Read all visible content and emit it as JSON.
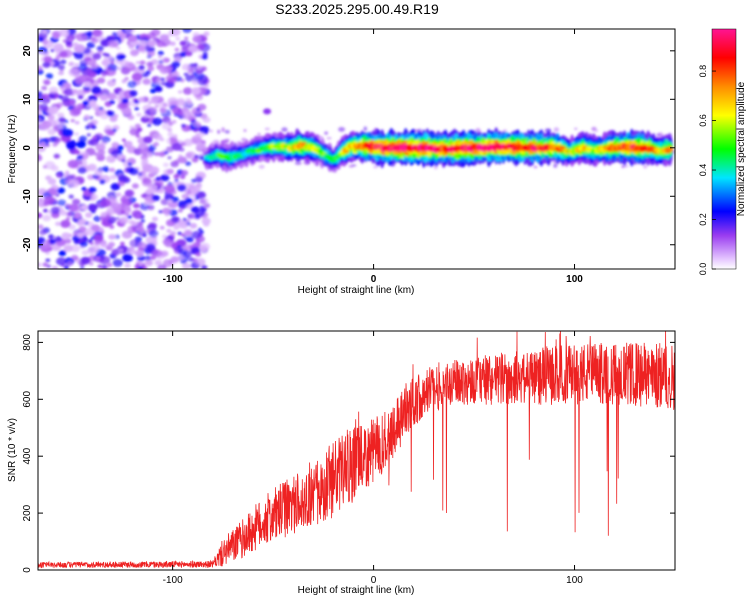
{
  "title": "S233.2025.295.00.49.R19",
  "chart_data": [
    {
      "type": "heatmap",
      "xlabel": "Height of straight line (km)",
      "ylabel": "Frequency (Hz)",
      "xlim": [
        -167,
        150
      ],
      "ylim": [
        -25,
        24.5
      ],
      "xticks": [
        -100,
        0,
        100
      ],
      "yticks": [
        -20,
        -10,
        0,
        10,
        20
      ],
      "colorbar": {
        "label": "Normalized spectral amplitude",
        "range": [
          0,
          0.97
        ],
        "ticks": [
          "0.0",
          "0.2",
          "0.4",
          "0.6",
          "0.8"
        ],
        "tick_values": [
          0,
          0.2,
          0.4,
          0.6,
          0.8
        ],
        "colors": [
          "#ffffff",
          "#e6c8ff",
          "#8a2be2",
          "#0000ff",
          "#00e5ff",
          "#00ff00",
          "#ffff00",
          "#ff8c00",
          "#ff0000",
          "#ff1493"
        ]
      },
      "noise_region": {
        "x_range": [
          -167,
          -83
        ],
        "y_range": [
          -25,
          24.5
        ],
        "amplitude": [
          0.05,
          0.25
        ]
      },
      "ridge": [
        {
          "x": -83,
          "f": -2.2,
          "a": 0.35
        },
        {
          "x": -78,
          "f": -1.5,
          "a": 0.45
        },
        {
          "x": -72,
          "f": -2.0,
          "a": 0.5
        },
        {
          "x": -66,
          "f": -1.4,
          "a": 0.4
        },
        {
          "x": -60,
          "f": -0.6,
          "a": 0.45
        },
        {
          "x": -54,
          "f": 0.0,
          "a": 0.5
        },
        {
          "x": -48,
          "f": 0.3,
          "a": 0.55
        },
        {
          "x": -42,
          "f": 0.0,
          "a": 0.6
        },
        {
          "x": -36,
          "f": 0.4,
          "a": 0.7
        },
        {
          "x": -30,
          "f": 0.0,
          "a": 0.6
        },
        {
          "x": -25,
          "f": -1.2,
          "a": 0.5
        },
        {
          "x": -20,
          "f": -2.6,
          "a": 0.45
        },
        {
          "x": -16,
          "f": -1.0,
          "a": 0.55
        },
        {
          "x": -12,
          "f": 0.2,
          "a": 0.7
        },
        {
          "x": -5,
          "f": 0.4,
          "a": 0.8
        },
        {
          "x": 5,
          "f": 0.0,
          "a": 0.9
        },
        {
          "x": 20,
          "f": 0.0,
          "a": 0.95
        },
        {
          "x": 35,
          "f": -0.2,
          "a": 0.85
        },
        {
          "x": 50,
          "f": 0.0,
          "a": 0.9
        },
        {
          "x": 65,
          "f": 0.2,
          "a": 0.9
        },
        {
          "x": 80,
          "f": 0.0,
          "a": 0.85
        },
        {
          "x": 90,
          "f": 0.1,
          "a": 0.8
        },
        {
          "x": 98,
          "f": -0.8,
          "a": 0.6
        },
        {
          "x": 104,
          "f": 0.0,
          "a": 0.7
        },
        {
          "x": 110,
          "f": -0.6,
          "a": 0.6
        },
        {
          "x": 118,
          "f": 0.0,
          "a": 0.75
        },
        {
          "x": 126,
          "f": 0.2,
          "a": 0.85
        },
        {
          "x": 135,
          "f": 0.0,
          "a": 0.8
        },
        {
          "x": 142,
          "f": -0.6,
          "a": 0.65
        },
        {
          "x": 148,
          "f": -0.3,
          "a": 0.7
        }
      ]
    },
    {
      "type": "line",
      "xlabel": "Height of straight line (km)",
      "ylabel": "SNR (10 * v/v)",
      "xlim": [
        -167,
        150
      ],
      "ylim": [
        0,
        840
      ],
      "xticks": [
        -100,
        0,
        100
      ],
      "yticks": [
        0,
        200,
        400,
        600,
        800
      ],
      "series": [
        {
          "name": "SNR",
          "color": "#ee2222",
          "envelope": [
            {
              "x": -167,
              "mean": 18,
              "spread": 10
            },
            {
              "x": -80,
              "mean": 20,
              "spread": 12
            },
            {
              "x": -75,
              "mean": 60,
              "spread": 50
            },
            {
              "x": -65,
              "mean": 110,
              "spread": 70
            },
            {
              "x": -55,
              "mean": 170,
              "spread": 90
            },
            {
              "x": -45,
              "mean": 210,
              "spread": 100
            },
            {
              "x": -35,
              "mean": 250,
              "spread": 110
            },
            {
              "x": -25,
              "mean": 290,
              "spread": 130
            },
            {
              "x": -15,
              "mean": 350,
              "spread": 140
            },
            {
              "x": -5,
              "mean": 390,
              "spread": 120
            },
            {
              "x": 5,
              "mean": 450,
              "spread": 110
            },
            {
              "x": 15,
              "mean": 550,
              "spread": 100
            },
            {
              "x": 25,
              "mean": 630,
              "spread": 90
            },
            {
              "x": 40,
              "mean": 660,
              "spread": 80
            },
            {
              "x": 60,
              "mean": 670,
              "spread": 90
            },
            {
              "x": 80,
              "mean": 680,
              "spread": 100
            },
            {
              "x": 100,
              "mean": 690,
              "spread": 110
            },
            {
              "x": 120,
              "mean": 690,
              "spread": 110
            },
            {
              "x": 150,
              "mean": 680,
              "spread": 120
            }
          ]
        }
      ]
    }
  ]
}
